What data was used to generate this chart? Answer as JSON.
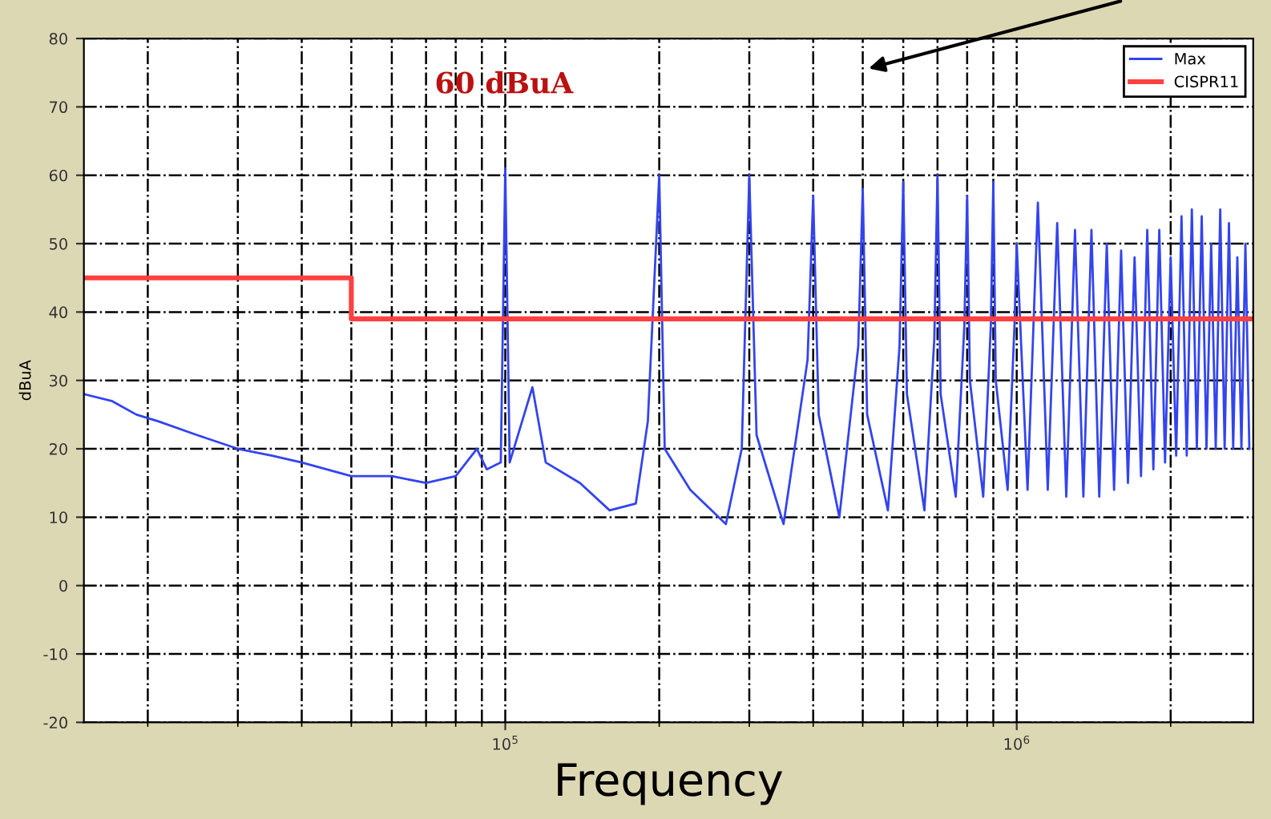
{
  "chart_data": {
    "type": "line",
    "xlabel": "Frequency",
    "ylabel": "dBuA",
    "log": "x",
    "xlim": [
      15000,
      2900000
    ],
    "xticks": [
      {
        "value": 100000,
        "label": "10$^{5}$"
      },
      {
        "value": 1000000,
        "label": "10$^{6}$"
      }
    ],
    "ylim": [
      -20,
      80
    ],
    "yticks": [
      -20,
      -10,
      0,
      10,
      20,
      30,
      40,
      50,
      60,
      70,
      80
    ],
    "grid": true,
    "legend": "top right",
    "annotations": [
      "60 dBuA"
    ],
    "series": [
      {
        "name": "Max",
        "color": "#3344ee",
        "x": [
          15000,
          17000,
          19000,
          21000,
          25000,
          30000,
          35000,
          40000,
          50000,
          60000,
          70000,
          80000,
          88000,
          92000,
          98000,
          100000,
          102000,
          113000,
          120000,
          140000,
          160000,
          180000,
          190000,
          200000,
          205000,
          230000,
          270000,
          290000,
          300000,
          310000,
          350000,
          390000,
          400000,
          410000,
          450000,
          490000,
          500000,
          510000,
          560000,
          590000,
          600000,
          610000,
          660000,
          690000,
          700000,
          710000,
          760000,
          790000,
          800000,
          810000,
          860000,
          890000,
          900000,
          910000,
          960000,
          990000,
          1000000,
          1050000,
          1100000,
          1150000,
          1200000,
          1250000,
          1300000,
          1350000,
          1400000,
          1450000,
          1500000,
          1550000,
          1600000,
          1650000,
          1700000,
          1750000,
          1800000,
          1850000,
          1900000,
          1950000,
          2000000,
          2050000,
          2100000,
          2150000,
          2200000,
          2250000,
          2300000,
          2350000,
          2400000,
          2450000,
          2500000,
          2550000,
          2600000,
          2650000,
          2700000,
          2750000,
          2800000,
          2850000
        ],
        "values": [
          28,
          27,
          25,
          24,
          22,
          20,
          19,
          18,
          16,
          16,
          15,
          16,
          20,
          17,
          18,
          61,
          18,
          29,
          18,
          15,
          11,
          12,
          24,
          60,
          20,
          14,
          9,
          20,
          60,
          22,
          9,
          33,
          57,
          25,
          10,
          35,
          58,
          25,
          11,
          35,
          59,
          28,
          11,
          36,
          60,
          28,
          13,
          38,
          57,
          30,
          13,
          38,
          59,
          30,
          14,
          38,
          50,
          14,
          56,
          14,
          53,
          13,
          52,
          13,
          52,
          13,
          50,
          14,
          49,
          15,
          48,
          16,
          52,
          17,
          52,
          18,
          48,
          19,
          54,
          19,
          55,
          20,
          54,
          20,
          50,
          20,
          55,
          20,
          53,
          20,
          48,
          20,
          50,
          20
        ]
      },
      {
        "name": "CISPR11",
        "type": "step",
        "color": "#ff4040",
        "x": [
          15000,
          50000,
          2900000
        ],
        "values": [
          45,
          39,
          39
        ]
      }
    ]
  }
}
